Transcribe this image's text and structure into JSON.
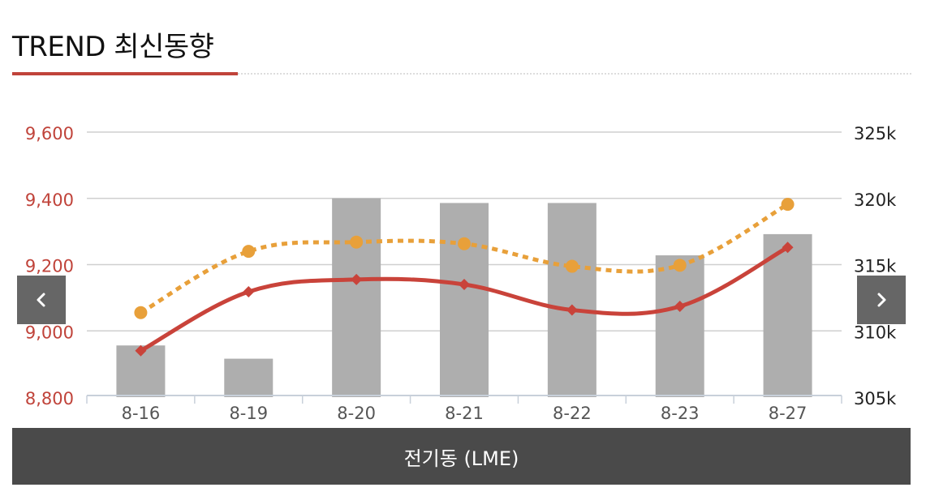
{
  "header": {
    "title": "TREND 최신동향"
  },
  "nav": {
    "prev_icon": "chevron-left-icon",
    "next_icon": "chevron-right-icon"
  },
  "footer": {
    "label": "전기동 (LME)"
  },
  "colors": {
    "accent": "#c0433a",
    "bar": "#aeaeae",
    "line_primary": "#c9433a",
    "line_secondary": "#e8a03a",
    "nav_button": "#666666",
    "footer": "#4a4a4a"
  },
  "chart_data": {
    "type": "bar",
    "categories": [
      "8-16",
      "8-19",
      "8-20",
      "8-21",
      "8-22",
      "8-23",
      "8-27"
    ],
    "left_axis": {
      "ticks": [
        "9,600",
        "9,400",
        "9,200",
        "9,000",
        "8,800"
      ],
      "range": [
        8800,
        9600
      ]
    },
    "right_axis": {
      "ticks": [
        "325k",
        "320k",
        "315k",
        "310k",
        "305k"
      ],
      "range": [
        305000,
        325000
      ]
    },
    "series": [
      {
        "type": "bar",
        "axis": "right",
        "values": [
          308900,
          307900,
          320000,
          319650,
          319650,
          315700,
          317300
        ]
      },
      {
        "type": "line",
        "axis": "left",
        "style": "solid",
        "marker": "diamond",
        "values": [
          8940,
          9118,
          9155,
          9140,
          9063,
          9074,
          9252
        ]
      },
      {
        "type": "line",
        "axis": "left",
        "style": "dotted",
        "marker": "circle",
        "values": [
          9055,
          9240,
          9268,
          9263,
          9195,
          9198,
          9382
        ]
      }
    ],
    "grid": true
  }
}
